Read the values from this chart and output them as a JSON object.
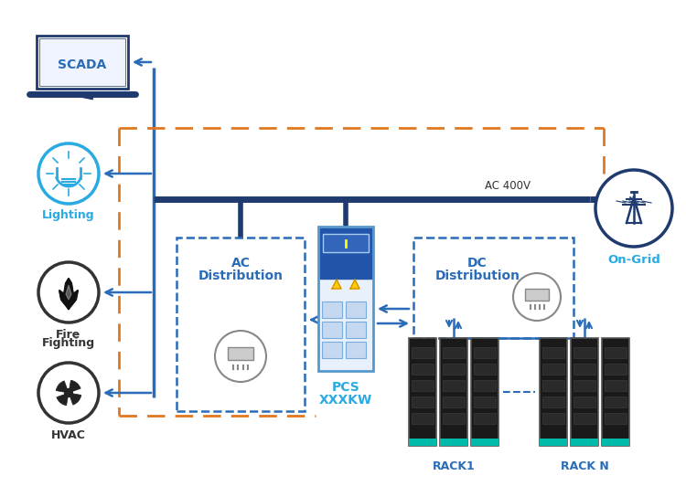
{
  "bg_color": "#ffffff",
  "blue_dark": "#1e3a6e",
  "blue_mid": "#2b6cb8",
  "blue_light": "#29abe2",
  "orange": "#e07820",
  "gray_dark": "#333333",
  "labels": {
    "scada": "SCADA",
    "lighting": "Lighting",
    "fire_line1": "Fire",
    "fire_line2": "Fighting",
    "hvac": "HVAC",
    "ac_dist_line1": "AC",
    "ac_dist_line2": "Distribution",
    "dc_dist_line1": "DC",
    "dc_dist_line2": "Distribution",
    "pcs_line1": "PCS",
    "pcs_line2": "XXXKW",
    "ac400v": "AC 400V",
    "on_grid": "On-Grid",
    "rack1": "RACK1",
    "rackn": "RACK N"
  }
}
